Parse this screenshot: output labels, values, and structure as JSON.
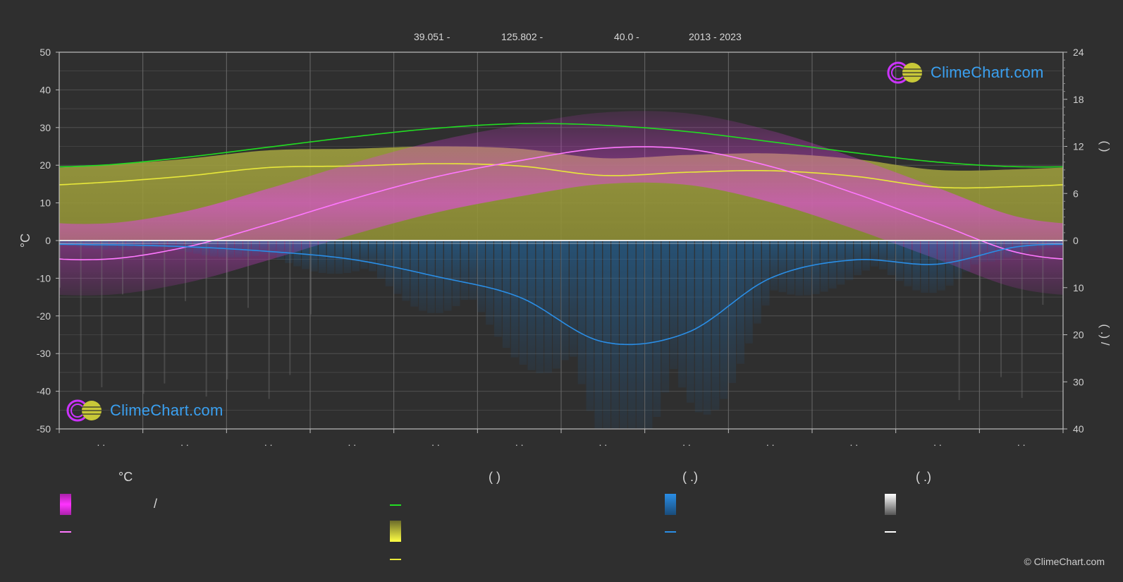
{
  "header": {
    "lat": "39.051 -",
    "lon": "125.802 -",
    "elev": "40.0 -",
    "years": "2013 - 2023"
  },
  "colors": {
    "bg": "#2f2f2f",
    "grid": "#5a5a5a",
    "daylight": "#22dd22",
    "sunshine": "#e8e83a",
    "temp_band": "#cc33cc",
    "temp_mean": "#ff77ff",
    "rain": "#2a8ee6",
    "snow": "#d0d0d0",
    "brand": "#3aa0f0"
  },
  "chart_data": {
    "type": "line",
    "ylabel_left": "°C",
    "y_left_range": [
      -50,
      50
    ],
    "y_left_ticks": [
      "50",
      "40",
      "30",
      "20",
      "10",
      "0",
      "-10",
      "-20",
      "-30",
      "-40",
      "-50"
    ],
    "y_right_top_ticks": [
      "24",
      "18",
      "12",
      "6",
      "0"
    ],
    "y_right_bottom_ticks": [
      "10",
      "20",
      "30",
      "40"
    ],
    "ylabel_right_top": "(   )",
    "ylabel_right_bottom": "(   .)      /",
    "x_tick_labels": [
      ". .",
      ". .",
      ". .",
      ". .",
      ". .",
      ". .",
      ". .",
      ". .",
      ". .",
      ". .",
      ". .",
      ". ."
    ],
    "months": [
      1,
      2,
      3,
      4,
      5,
      6,
      7,
      8,
      9,
      10,
      11,
      12
    ],
    "series": [
      {
        "name": "",
        "kind": "daylight_hours",
        "values": [
          9.6,
          10.6,
          11.9,
          13.2,
          14.3,
          14.9,
          14.7,
          13.9,
          12.6,
          11.2,
          10.0,
          9.4
        ]
      },
      {
        "name": "",
        "kind": "sunshine_hours",
        "values": [
          7.4,
          8.2,
          9.3,
          9.5,
          9.8,
          9.5,
          8.3,
          8.7,
          8.9,
          8.2,
          6.8,
          6.9
        ]
      },
      {
        "name": "",
        "kind": "mean_temperature",
        "values": [
          -5.0,
          -1.8,
          4.3,
          11.0,
          16.9,
          21.2,
          24.5,
          24.3,
          19.7,
          12.6,
          4.5,
          -3.4
        ]
      },
      {
        "name": "",
        "kind": "precipitation_mm",
        "values": [
          0.9,
          1.3,
          2.3,
          4.0,
          7.6,
          12.0,
          21.5,
          19.6,
          8.0,
          4.1,
          5.0,
          1.2
        ]
      }
    ]
  },
  "legend": {
    "col1_header": "°C",
    "col2_header": "(          )",
    "col3_header": "(    .)",
    "col4_header": "(    .)",
    "slash": "/"
  },
  "logo_text": "ClimeChart.com",
  "copyright": "© ClimeChart.com"
}
